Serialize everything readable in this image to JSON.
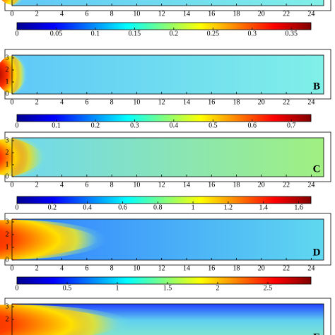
{
  "chart_data": [
    {
      "type": "heatmap",
      "xlim": [
        0,
        25
      ],
      "xticks": [
        0,
        2,
        4,
        6,
        8,
        10,
        12,
        14,
        16,
        18,
        20,
        22,
        24
      ]
    },
    {
      "type": "heatmap",
      "label": "B",
      "xlim": [
        0,
        25
      ],
      "xticks": [
        0,
        2,
        4,
        6,
        8,
        10,
        12,
        14,
        16,
        18,
        20,
        22,
        24
      ],
      "ylim": [
        0,
        3
      ],
      "yticks": [
        0,
        1,
        2,
        3
      ],
      "clim": [
        0,
        0.375
      ],
      "cticks": [
        0,
        0.05,
        0.1,
        0.15,
        0.2,
        0.25,
        0.3,
        0.35
      ]
    },
    {
      "type": "heatmap",
      "label": "C",
      "xlim": [
        0,
        25
      ],
      "xticks": [
        0,
        2,
        4,
        6,
        8,
        10,
        12,
        14,
        16,
        18,
        20,
        22,
        24
      ],
      "ylim": [
        0,
        3
      ],
      "yticks": [
        0,
        1,
        2,
        3
      ],
      "clim": [
        0,
        0.75
      ],
      "cticks": [
        0,
        0.1,
        0.2,
        0.3,
        0.4,
        0.5,
        0.6,
        0.7
      ]
    },
    {
      "type": "heatmap",
      "label": "D",
      "xlim": [
        0,
        25
      ],
      "xticks": [
        0,
        2,
        4,
        6,
        8,
        10,
        12,
        14,
        16,
        18,
        20,
        22,
        24
      ],
      "ylim": [
        0,
        3
      ],
      "yticks": [
        0,
        1,
        2,
        3
      ],
      "clim": [
        0,
        1.67
      ],
      "cticks": [
        0,
        0.2,
        0.4,
        0.6,
        0.8,
        1,
        1.2,
        1.4,
        1.6
      ]
    },
    {
      "type": "heatmap",
      "label": "E",
      "xlim": [
        0,
        25
      ],
      "ylim": [
        0,
        3
      ],
      "yticks": [
        2,
        3
      ],
      "clim": [
        0,
        2.93
      ],
      "cticks": [
        0,
        0.5,
        1,
        1.5,
        2,
        2.5
      ]
    }
  ]
}
